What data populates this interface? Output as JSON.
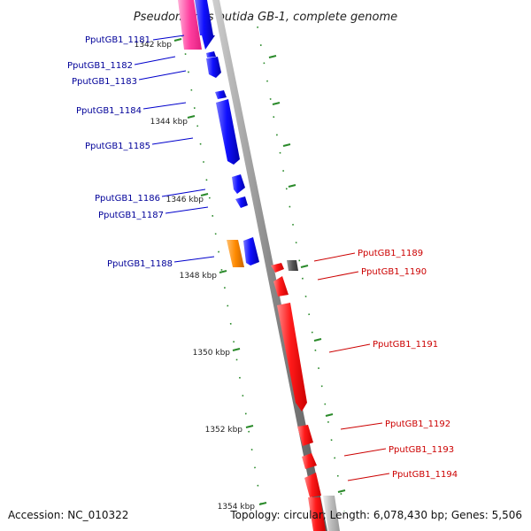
{
  "title": "Pseudomonas putida GB-1, complete genome",
  "footer": {
    "accession": "Accession: NC_010322",
    "summary": "Topology: circular; Length: 6,078,430 bp; Genes: 5,506"
  },
  "colors": {
    "forward_gene": "#0000ee",
    "reverse_gene": "#ff2222",
    "forward_label": "#000099",
    "reverse_label": "#cc0000",
    "backbone": "#888888",
    "tick": "#2a8a2a",
    "other_pink": "#ff3fa0",
    "other_orange": "#ff8a00",
    "other_grey": "#666666",
    "other_lightgrey": "#bbbbbb"
  },
  "scale": {
    "labels": [
      "1342 kbp",
      "1344 kbp",
      "1346 kbp",
      "1348 kbp",
      "1350 kbp",
      "1352 kbp",
      "1354 kbp"
    ]
  },
  "genes": [
    {
      "id": "g1181",
      "label": "PputGB1_1181",
      "strand": "forward",
      "color_key": "other_pink"
    },
    {
      "id": "g1182",
      "label": "PputGB1_1182",
      "strand": "forward",
      "color_key": "forward_gene"
    },
    {
      "id": "g1183",
      "label": "PputGB1_1183",
      "strand": "forward",
      "color_key": "forward_gene"
    },
    {
      "id": "g1184",
      "label": "PputGB1_1184",
      "strand": "forward",
      "color_key": "forward_gene"
    },
    {
      "id": "g1185",
      "label": "PputGB1_1185",
      "strand": "forward",
      "color_key": "forward_gene"
    },
    {
      "id": "g1186",
      "label": "PputGB1_1186",
      "strand": "forward",
      "color_key": "forward_gene"
    },
    {
      "id": "g1187",
      "label": "PputGB1_1187",
      "strand": "forward",
      "color_key": "forward_gene"
    },
    {
      "id": "g1188",
      "label": "PputGB1_1188",
      "strand": "forward",
      "color_key": "forward_gene"
    },
    {
      "id": "g1189",
      "label": "PputGB1_1189",
      "strand": "reverse",
      "color_key": "reverse_gene"
    },
    {
      "id": "g1190",
      "label": "PputGB1_1190",
      "strand": "reverse",
      "color_key": "reverse_gene"
    },
    {
      "id": "g1191",
      "label": "PputGB1_1191",
      "strand": "reverse",
      "color_key": "reverse_gene"
    },
    {
      "id": "g1192",
      "label": "PputGB1_1192",
      "strand": "reverse",
      "color_key": "reverse_gene"
    },
    {
      "id": "g1193",
      "label": "PputGB1_1193",
      "strand": "reverse",
      "color_key": "reverse_gene"
    },
    {
      "id": "g1194",
      "label": "PputGB1_1194",
      "strand": "reverse",
      "color_key": "reverse_gene"
    }
  ]
}
